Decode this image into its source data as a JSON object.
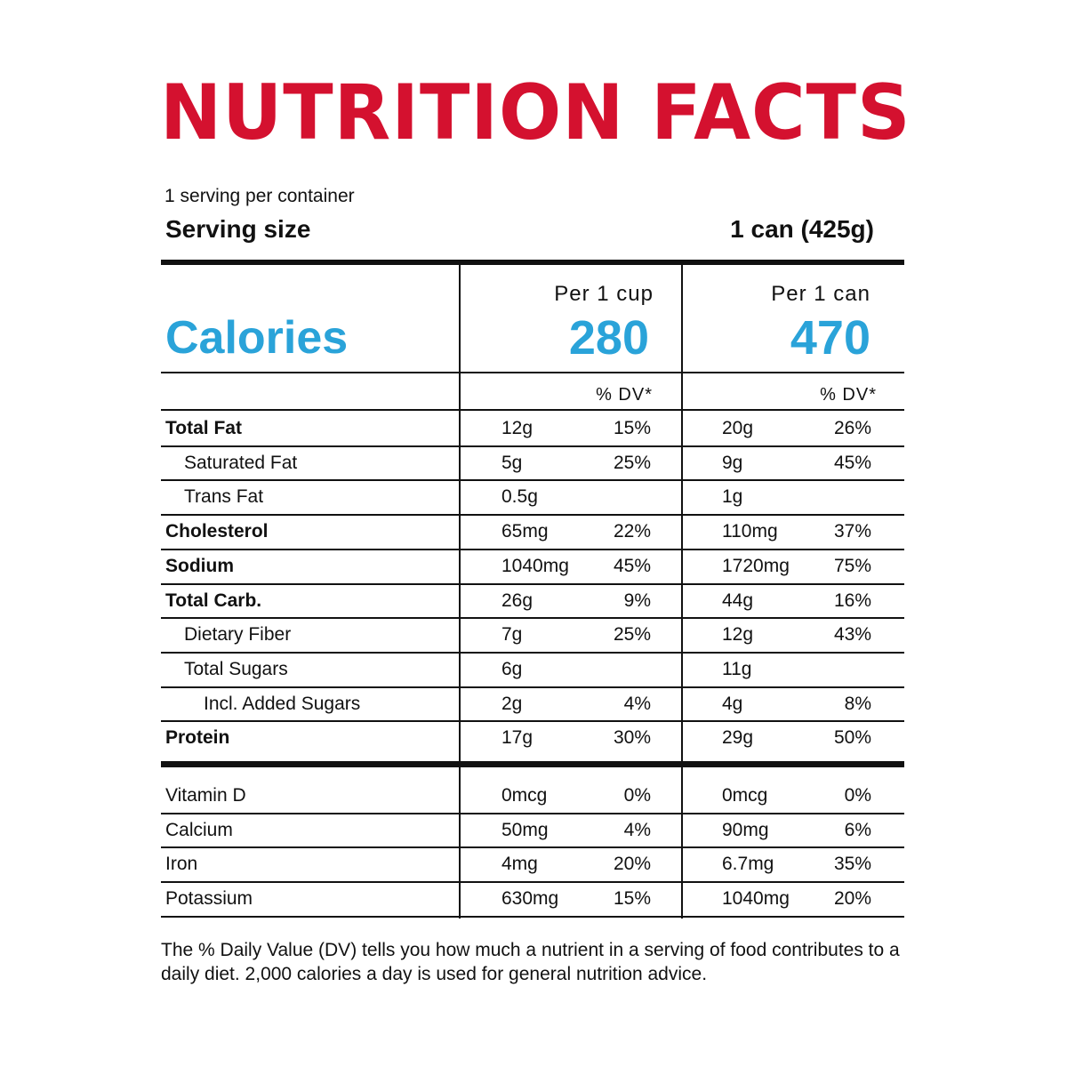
{
  "title": "NUTRITION FACTS",
  "colors": {
    "title": "#d4112f",
    "calories": "#2aa3d9",
    "text": "#111111"
  },
  "servings_per_container": "1 serving per container",
  "serving_size": {
    "label": "Serving size",
    "value": "1 can (425g)"
  },
  "calories": {
    "label": "Calories",
    "columns": [
      {
        "per_label": "Per 1 cup",
        "value": "280",
        "dv_header": "% DV*"
      },
      {
        "per_label": "Per 1 can",
        "value": "470",
        "dv_header": "% DV*"
      }
    ]
  },
  "nutrients": [
    {
      "name": "Total Fat",
      "bold": true,
      "indent": 0,
      "cup_amount": "12g",
      "cup_dv": "15%",
      "can_amount": "20g",
      "can_dv": "26%"
    },
    {
      "name": "Saturated Fat",
      "bold": false,
      "indent": 1,
      "cup_amount": "5g",
      "cup_dv": "25%",
      "can_amount": "9g",
      "can_dv": "45%"
    },
    {
      "name": "Trans Fat",
      "bold": false,
      "indent": 1,
      "cup_amount": "0.5g",
      "cup_dv": "",
      "can_amount": "1g",
      "can_dv": ""
    },
    {
      "name": "Cholesterol",
      "bold": true,
      "indent": 0,
      "cup_amount": "65mg",
      "cup_dv": "22%",
      "can_amount": "110mg",
      "can_dv": "37%"
    },
    {
      "name": "Sodium",
      "bold": true,
      "indent": 0,
      "cup_amount": "1040mg",
      "cup_dv": "45%",
      "can_amount": "1720mg",
      "can_dv": "75%"
    },
    {
      "name": "Total Carb.",
      "bold": true,
      "indent": 0,
      "cup_amount": "26g",
      "cup_dv": "9%",
      "can_amount": "44g",
      "can_dv": "16%"
    },
    {
      "name": "Dietary Fiber",
      "bold": false,
      "indent": 1,
      "cup_amount": "7g",
      "cup_dv": "25%",
      "can_amount": "12g",
      "can_dv": "43%"
    },
    {
      "name": "Total Sugars",
      "bold": false,
      "indent": 1,
      "cup_amount": "6g",
      "cup_dv": "",
      "can_amount": "11g",
      "can_dv": ""
    },
    {
      "name": "Incl. Added Sugars",
      "bold": false,
      "indent": 2,
      "cup_amount": "2g",
      "cup_dv": "4%",
      "can_amount": "4g",
      "can_dv": "8%"
    },
    {
      "name": "Protein",
      "bold": true,
      "indent": 0,
      "cup_amount": "17g",
      "cup_dv": "30%",
      "can_amount": "29g",
      "can_dv": "50%"
    }
  ],
  "vitamins": [
    {
      "name": "Vitamin D",
      "cup_amount": "0mcg",
      "cup_dv": "0%",
      "can_amount": "0mcg",
      "can_dv": "0%"
    },
    {
      "name": "Calcium",
      "cup_amount": "50mg",
      "cup_dv": "4%",
      "can_amount": "90mg",
      "can_dv": "6%"
    },
    {
      "name": "Iron",
      "cup_amount": "4mg",
      "cup_dv": "20%",
      "can_amount": "6.7mg",
      "can_dv": "35%"
    },
    {
      "name": "Potassium",
      "cup_amount": "630mg",
      "cup_dv": "15%",
      "can_amount": "1040mg",
      "can_dv": "20%"
    }
  ],
  "footnote": "The % Daily Value (DV) tells you how much a nutrient in a serving of food contributes to a daily diet. 2,000 calories a day is used for general nutrition advice."
}
